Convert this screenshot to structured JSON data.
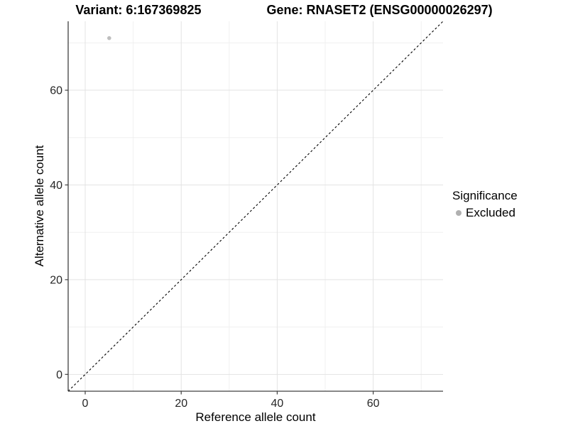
{
  "chart_data": {
    "type": "scatter",
    "title_left": "Variant: 6:167369825",
    "title_right": "Gene: RNASET2 (ENSG00000026297)",
    "xlabel": "Reference allele count",
    "ylabel": "Alternative allele count",
    "xlim": [
      -3.55,
      74.55
    ],
    "ylim": [
      -3.55,
      74.55
    ],
    "x_ticks": [
      0,
      20,
      40,
      60
    ],
    "y_ticks": [
      0,
      20,
      40,
      60
    ],
    "x_minor_ticks": [
      10,
      30,
      50,
      70
    ],
    "y_minor_ticks": [
      10,
      30,
      50,
      70
    ],
    "grid": true,
    "legend_position": "right",
    "legend": {
      "title": "Significance",
      "items": [
        {
          "label": "Excluded",
          "color": "#b0b0b0"
        }
      ]
    },
    "series": [
      {
        "name": "Excluded",
        "color": "#bebebe",
        "points": [
          {
            "x": 5,
            "y": 71
          }
        ]
      }
    ],
    "reference_line": {
      "slope": 1,
      "intercept": 0,
      "style": "dashed",
      "color": "#000000"
    },
    "colors": {
      "background": "#ffffff",
      "major_grid": "#e3e3e3",
      "minor_grid": "#f0f0f0",
      "axis_line": "#404040",
      "tick_label": "#262626",
      "title": "#000000"
    }
  }
}
